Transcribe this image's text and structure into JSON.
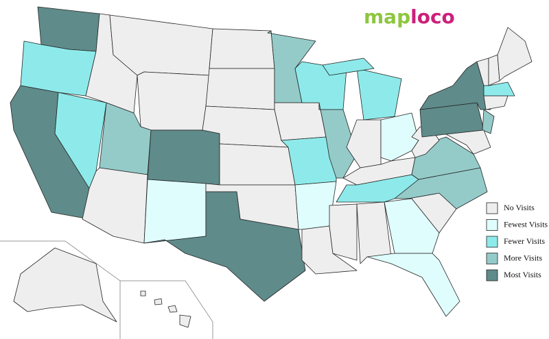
{
  "logo": {
    "parts": [
      {
        "text": "map",
        "color": "#8dc63f"
      },
      {
        "text": "loco",
        "color": "#cc1f7a"
      }
    ]
  },
  "legend": {
    "items": [
      {
        "label": "No Visits",
        "color": "#eeeeee"
      },
      {
        "label": "Fewest Visits",
        "color": "#dffdfd"
      },
      {
        "label": "Fewer Visits",
        "color": "#8eeaea"
      },
      {
        "label": "More Visits",
        "color": "#94cbc9"
      },
      {
        "label": "Most Visits",
        "color": "#5f8b8a"
      }
    ]
  }
}
